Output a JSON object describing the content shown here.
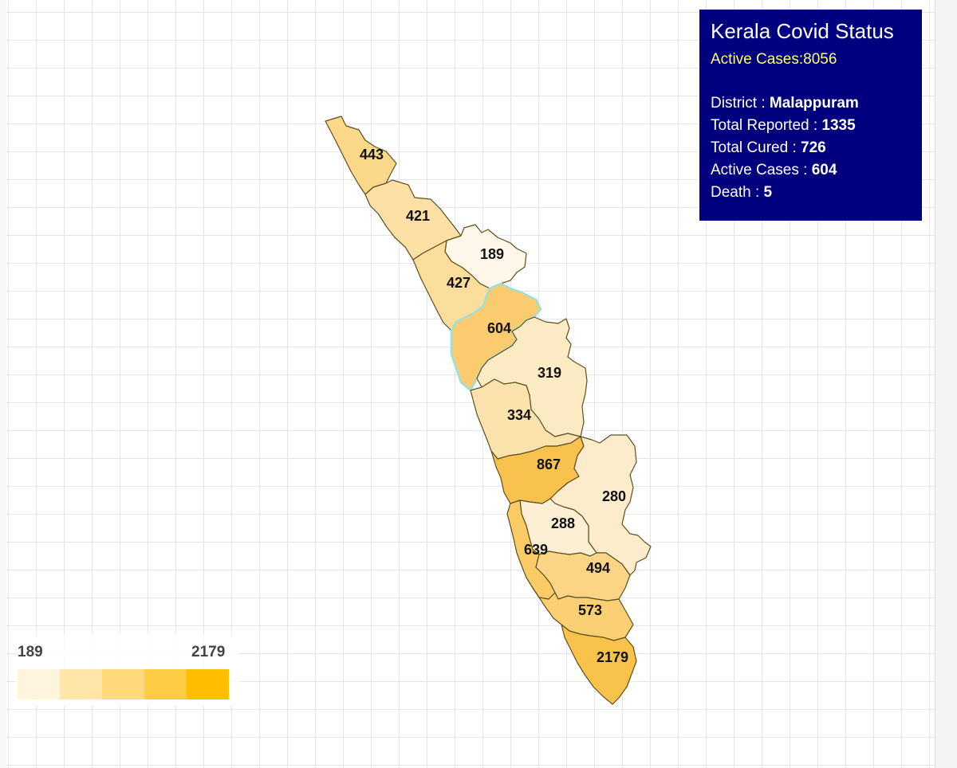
{
  "info": {
    "title": "Kerala Covid Status",
    "state_active": "Active Cases:8056",
    "district_label": "District : ",
    "district_value": "Malappuram",
    "reported_label": "Total Reported : ",
    "reported_value": "1335",
    "cured_label": "Total Cured : ",
    "cured_value": "726",
    "active_label": "Active Cases : ",
    "active_value": "604",
    "death_label": "Death : ",
    "death_value": "5"
  },
  "legend": {
    "min": "189",
    "max": "2179",
    "colors": [
      "#fff5dc",
      "#ffe6a8",
      "#ffd97a",
      "#ffcc44",
      "#ffbf00"
    ]
  },
  "map": {
    "districts": [
      {
        "id": "kasaragod",
        "value": "443",
        "fill": "#fcd88a"
      },
      {
        "id": "kannur",
        "value": "421",
        "fill": "#fce0a6"
      },
      {
        "id": "wayanad",
        "value": "189",
        "fill": "#fff8ea"
      },
      {
        "id": "kozhikode",
        "value": "427",
        "fill": "#fcde9c"
      },
      {
        "id": "malappuram",
        "value": "604",
        "fill": "#fbcb6f",
        "selected": true
      },
      {
        "id": "palakkad",
        "value": "319",
        "fill": "#fdebc4"
      },
      {
        "id": "thrissur",
        "value": "334",
        "fill": "#fce2ac"
      },
      {
        "id": "ernakulam",
        "value": "867",
        "fill": "#f9c24f"
      },
      {
        "id": "idukki",
        "value": "280",
        "fill": "#fdeccb"
      },
      {
        "id": "kottayam",
        "value": "288",
        "fill": "#fdefd3"
      },
      {
        "id": "alappuzha",
        "value": "639",
        "fill": "#fbcb66"
      },
      {
        "id": "pathanamthitta",
        "value": "494",
        "fill": "#fbd585"
      },
      {
        "id": "kollam",
        "value": "573",
        "fill": "#fbcf73"
      },
      {
        "id": "thiruvananthapuram",
        "value": "2179",
        "fill": "#f9c24a"
      }
    ]
  }
}
